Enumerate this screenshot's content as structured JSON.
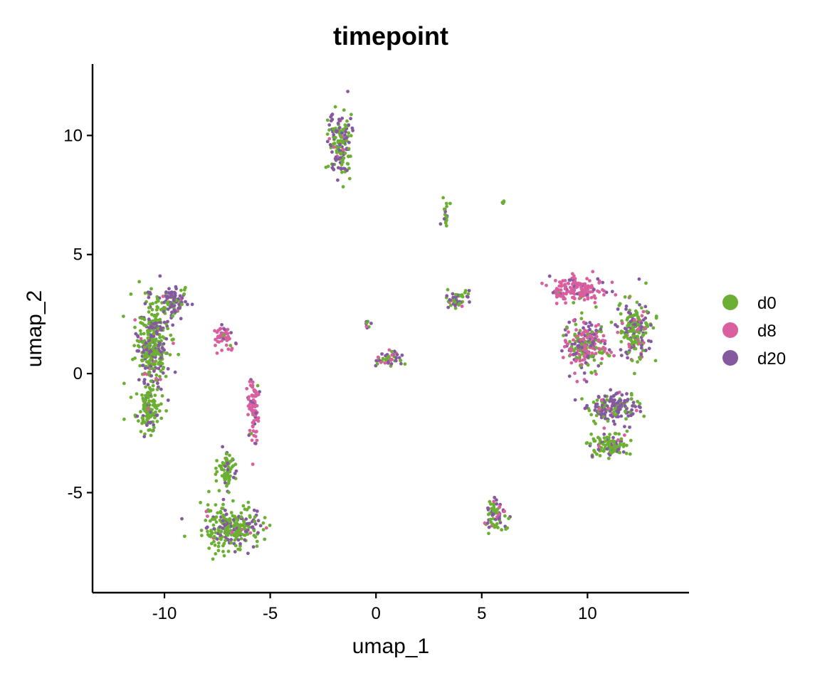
{
  "chart_data": {
    "type": "scatter",
    "title": "timepoint",
    "xlabel": "umap_1",
    "ylabel": "umap_2",
    "xlim": [
      -13.4,
      14.8
    ],
    "ylim": [
      -9.2,
      13.0
    ],
    "xticks": [
      -10,
      -5,
      0,
      5,
      10
    ],
    "xtick_labels": [
      "-10",
      "-5",
      "0",
      "5",
      "10"
    ],
    "yticks": [
      -5,
      0,
      5,
      10
    ],
    "ytick_labels": [
      "-5",
      "0",
      "5",
      "10"
    ],
    "grid": false,
    "legend_position": "right",
    "series": [
      {
        "name": "d0",
        "color": "#6CB033"
      },
      {
        "name": "d8",
        "color": "#D95F9F"
      },
      {
        "name": "d20",
        "color": "#8459A0"
      }
    ],
    "clusters": [
      {
        "center": [
          -10.6,
          1.2
        ],
        "spread": [
          0.7,
          1.9
        ],
        "weights": [
          0.55,
          0.05,
          0.4
        ]
      },
      {
        "center": [
          -10.8,
          -1.5
        ],
        "spread": [
          0.5,
          0.9
        ],
        "weights": [
          0.8,
          0.02,
          0.18
        ]
      },
      {
        "center": [
          -9.6,
          3.0
        ],
        "spread": [
          0.6,
          0.6
        ],
        "weights": [
          0.4,
          0.05,
          0.55
        ]
      },
      {
        "center": [
          -7.2,
          1.6
        ],
        "spread": [
          0.5,
          0.4
        ],
        "weights": [
          0.05,
          0.85,
          0.1
        ]
      },
      {
        "center": [
          -5.8,
          -1.5
        ],
        "spread": [
          0.25,
          1.3
        ],
        "weights": [
          0.05,
          0.85,
          0.1
        ]
      },
      {
        "center": [
          -6.8,
          -6.5
        ],
        "spread": [
          1.3,
          0.8
        ],
        "weights": [
          0.7,
          0.03,
          0.27
        ]
      },
      {
        "center": [
          -7.0,
          -4.0
        ],
        "spread": [
          0.4,
          0.7
        ],
        "weights": [
          0.8,
          0.02,
          0.18
        ]
      },
      {
        "center": [
          -1.7,
          9.6
        ],
        "spread": [
          0.5,
          1.2
        ],
        "weights": [
          0.55,
          0.05,
          0.4
        ]
      },
      {
        "center": [
          3.3,
          6.6
        ],
        "spread": [
          0.15,
          0.5
        ],
        "weights": [
          0.6,
          0.1,
          0.3
        ]
      },
      {
        "center": [
          0.6,
          0.6
        ],
        "spread": [
          0.5,
          0.35
        ],
        "weights": [
          0.3,
          0.3,
          0.4
        ]
      },
      {
        "center": [
          -0.4,
          2.1
        ],
        "spread": [
          0.1,
          0.3
        ],
        "weights": [
          0.6,
          0.1,
          0.3
        ]
      },
      {
        "center": [
          3.8,
          3.1
        ],
        "spread": [
          0.5,
          0.4
        ],
        "weights": [
          0.4,
          0.1,
          0.5
        ]
      },
      {
        "center": [
          9.6,
          3.5
        ],
        "spread": [
          1.2,
          0.5
        ],
        "weights": [
          0.05,
          0.8,
          0.15
        ]
      },
      {
        "center": [
          9.9,
          1.2
        ],
        "spread": [
          0.9,
          1.0
        ],
        "weights": [
          0.25,
          0.45,
          0.3
        ]
      },
      {
        "center": [
          12.3,
          1.8
        ],
        "spread": [
          0.7,
          1.1
        ],
        "weights": [
          0.55,
          0.1,
          0.35
        ]
      },
      {
        "center": [
          11.2,
          -1.4
        ],
        "spread": [
          1.1,
          0.6
        ],
        "weights": [
          0.35,
          0.05,
          0.6
        ]
      },
      {
        "center": [
          11.0,
          -3.0
        ],
        "spread": [
          0.8,
          0.5
        ],
        "weights": [
          0.75,
          0.03,
          0.22
        ]
      },
      {
        "center": [
          5.7,
          -6.0
        ],
        "spread": [
          0.5,
          0.55
        ],
        "weights": [
          0.45,
          0.2,
          0.35
        ]
      },
      {
        "center": [
          6.0,
          7.2
        ],
        "spread": [
          0.05,
          0.05
        ],
        "weights": [
          0.5,
          0.0,
          0.5
        ]
      }
    ]
  }
}
